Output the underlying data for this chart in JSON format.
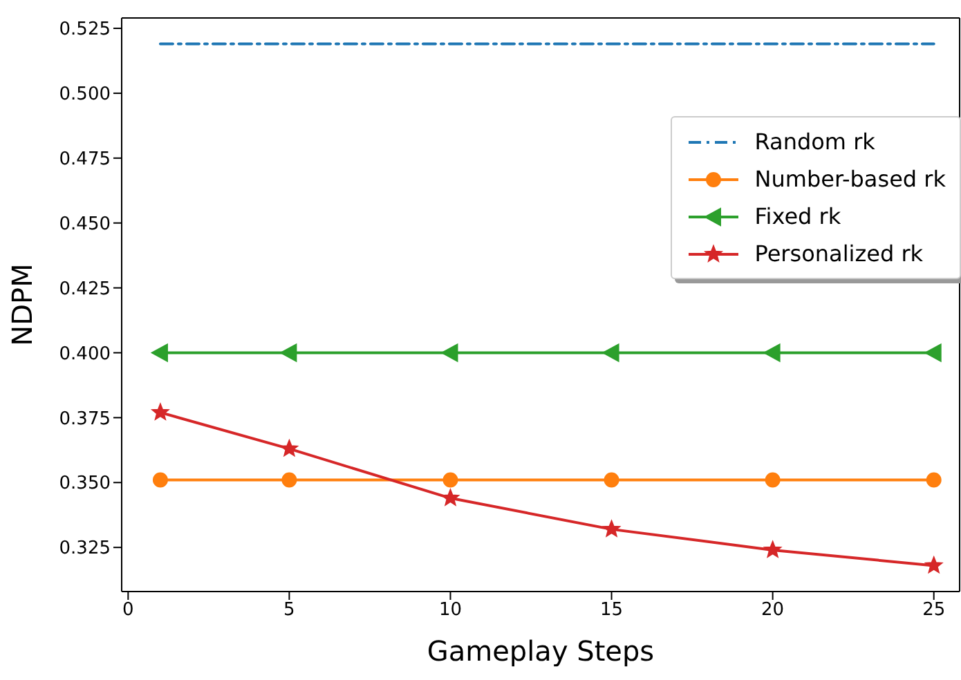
{
  "chart_data": {
    "type": "line",
    "xlabel": "Gameplay Steps",
    "ylabel": "NDPM",
    "x": [
      1,
      5,
      10,
      15,
      20,
      25
    ],
    "series": [
      {
        "name": "Random rk",
        "color": "#1f77b4",
        "values": [
          0.519,
          0.519,
          0.519,
          0.519,
          0.519,
          0.519
        ],
        "marker": "none",
        "line_style": "dashdot"
      },
      {
        "name": "Number-based rk",
        "color": "#ff7f0e",
        "values": [
          0.351,
          0.351,
          0.351,
          0.351,
          0.351,
          0.351
        ],
        "marker": "circle",
        "line_style": "solid"
      },
      {
        "name": "Fixed rk",
        "color": "#2ca02c",
        "values": [
          0.4,
          0.4,
          0.4,
          0.4,
          0.4,
          0.4
        ],
        "marker": "triangle",
        "line_style": "solid"
      },
      {
        "name": "Personalized rk",
        "color": "#d62728",
        "values": [
          0.377,
          0.363,
          0.344,
          0.332,
          0.324,
          0.318
        ],
        "marker": "star",
        "line_style": "solid"
      }
    ],
    "xlim": [
      -0.2,
      25.8
    ],
    "xticks": [
      0,
      5,
      10,
      15,
      20,
      25
    ],
    "ylim": [
      0.308,
      0.529
    ],
    "yticks": [
      {
        "value": 0.325,
        "label": "0.325"
      },
      {
        "value": 0.35,
        "label": "0.350"
      },
      {
        "value": 0.375,
        "label": "0.375"
      },
      {
        "value": 0.4,
        "label": "0.400"
      },
      {
        "value": 0.425,
        "label": "0.425"
      },
      {
        "value": 0.45,
        "label": "0.450"
      },
      {
        "value": 0.475,
        "label": "0.475"
      },
      {
        "value": 0.5,
        "label": "0.500"
      },
      {
        "value": 0.525,
        "label": "0.525"
      }
    ],
    "grid": false,
    "legend": "right"
  }
}
